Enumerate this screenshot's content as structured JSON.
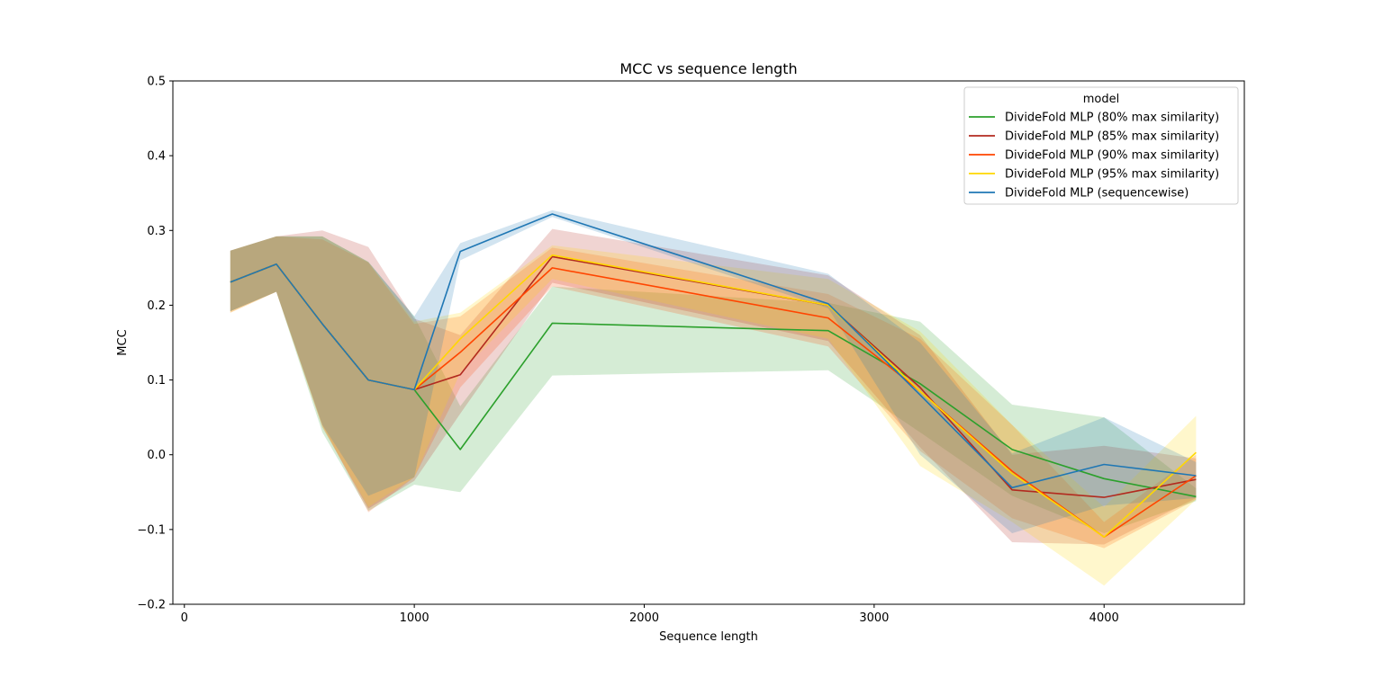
{
  "chart_data": {
    "type": "line",
    "title": "MCC vs sequence length",
    "xlabel": "Sequence length",
    "ylabel": "MCC",
    "xlim": [
      -50,
      4610
    ],
    "ylim": [
      -0.2,
      0.5
    ],
    "xticks": [
      0,
      1000,
      2000,
      3000,
      4000
    ],
    "xtick_labels": [
      "0",
      "1000",
      "2000",
      "3000",
      "4000"
    ],
    "yticks": [
      -0.2,
      -0.1,
      0.0,
      0.1,
      0.2,
      0.3,
      0.4,
      0.5
    ],
    "ytick_labels": [
      "−0.2",
      "−0.1",
      "0.0",
      "0.1",
      "0.2",
      "0.3",
      "0.4",
      "0.5"
    ],
    "grid": false,
    "legend_title": "model",
    "legend_position": "top-right",
    "series": [
      {
        "name": "DivideFold MLP (80% max similarity)",
        "color": "#2ca02c",
        "x": [
          200,
          400,
          600,
          800,
          1000,
          1200,
          1600,
          2800,
          3200,
          3600,
          4000,
          4400
        ],
        "values": [
          0.231,
          0.255,
          0.175,
          0.1,
          0.087,
          0.007,
          0.176,
          0.166,
          0.095,
          0.007,
          -0.032,
          -0.056
        ],
        "lower": [
          0.192,
          0.218,
          0.03,
          -0.075,
          -0.04,
          -0.05,
          0.106,
          0.113,
          0.03,
          -0.055,
          -0.105,
          -0.062
        ],
        "upper": [
          0.273,
          0.292,
          0.292,
          0.258,
          0.185,
          0.065,
          0.225,
          0.203,
          0.178,
          0.067,
          0.05,
          -0.045
        ]
      },
      {
        "name": "DivideFold MLP (85% max similarity)",
        "color": "#b22a1f",
        "x": [
          200,
          400,
          600,
          800,
          1000,
          1200,
          1600,
          2800,
          3200,
          3600,
          4000,
          4400
        ],
        "values": [
          0.231,
          0.255,
          0.175,
          0.1,
          0.087,
          0.107,
          0.265,
          0.2,
          0.09,
          -0.047,
          -0.057,
          -0.033
        ],
        "lower": [
          0.192,
          0.218,
          0.037,
          -0.072,
          -0.035,
          0.055,
          0.23,
          0.152,
          0.01,
          -0.117,
          -0.12,
          -0.058
        ],
        "upper": [
          0.273,
          0.292,
          0.3,
          0.278,
          0.182,
          0.16,
          0.302,
          0.24,
          0.16,
          0.0,
          0.012,
          -0.005
        ]
      },
      {
        "name": "DivideFold MLP (90% max similarity)",
        "color": "#ff4500",
        "x": [
          200,
          400,
          600,
          800,
          1000,
          1200,
          1600,
          2800,
          3200,
          3600,
          4000,
          4400
        ],
        "values": [
          0.231,
          0.255,
          0.175,
          0.1,
          0.087,
          0.137,
          0.25,
          0.183,
          0.085,
          -0.022,
          -0.11,
          -0.028
        ],
        "lower": [
          0.19,
          0.218,
          0.04,
          -0.077,
          -0.03,
          0.09,
          0.225,
          0.145,
          0.005,
          -0.085,
          -0.125,
          -0.06
        ],
        "upper": [
          0.273,
          0.292,
          0.288,
          0.257,
          0.175,
          0.185,
          0.277,
          0.215,
          0.155,
          0.04,
          -0.09,
          0.0
        ]
      },
      {
        "name": "DivideFold MLP (95% max similarity)",
        "color": "#ffd700",
        "x": [
          200,
          400,
          600,
          800,
          1000,
          1200,
          1600,
          2800,
          3200,
          3600,
          4000,
          4400
        ],
        "values": [
          0.231,
          0.255,
          0.175,
          0.1,
          0.087,
          0.155,
          0.267,
          0.2,
          0.085,
          -0.025,
          -0.11,
          0.003
        ],
        "lower": [
          0.19,
          0.218,
          0.037,
          -0.07,
          -0.03,
          0.11,
          0.235,
          0.155,
          -0.015,
          -0.09,
          -0.175,
          -0.06
        ],
        "upper": [
          0.273,
          0.292,
          0.292,
          0.258,
          0.178,
          0.19,
          0.28,
          0.235,
          0.165,
          0.04,
          -0.07,
          0.052
        ]
      },
      {
        "name": "DivideFold MLP (sequencewise)",
        "color": "#1f77b4",
        "x": [
          200,
          400,
          600,
          800,
          1000,
          1200,
          1600,
          2800,
          3200,
          3600,
          4000,
          4400
        ],
        "values": [
          0.231,
          0.255,
          0.175,
          0.1,
          0.087,
          0.272,
          0.322,
          0.202,
          0.08,
          -0.044,
          -0.013,
          -0.028
        ],
        "lower": [
          0.192,
          0.218,
          0.04,
          -0.055,
          -0.03,
          0.26,
          0.318,
          0.196,
          0.0,
          -0.105,
          -0.068,
          -0.058
        ],
        "upper": [
          0.273,
          0.292,
          0.292,
          0.258,
          0.185,
          0.283,
          0.327,
          0.242,
          0.15,
          0.002,
          0.05,
          -0.01
        ]
      }
    ]
  }
}
